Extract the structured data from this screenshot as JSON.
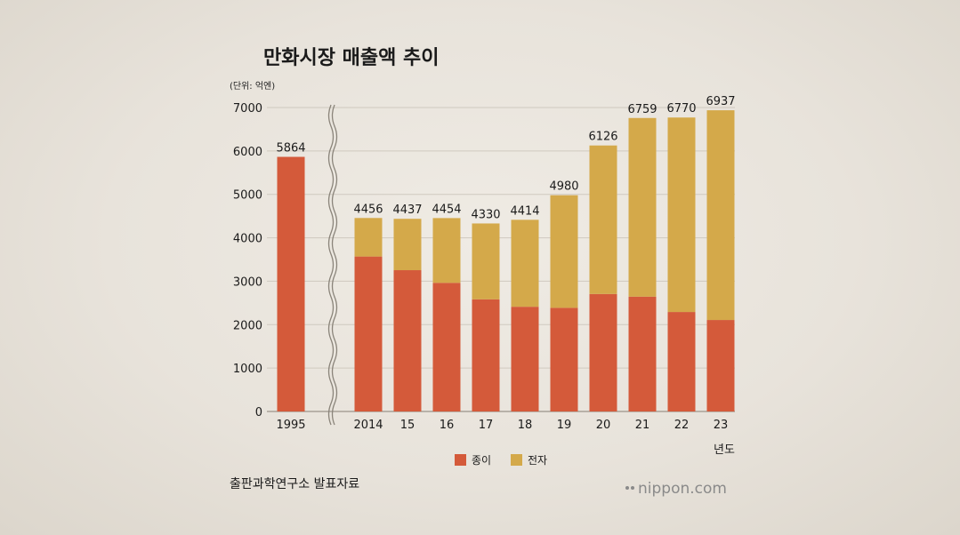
{
  "chart_data": {
    "type": "bar",
    "stacked": true,
    "title": "만화시장 매출액 추이",
    "unit_label": "(단위: 억엔)",
    "xlabel": "년도",
    "categories": [
      "1995",
      "2014",
      "15",
      "16",
      "17",
      "18",
      "19",
      "20",
      "21",
      "22",
      "23"
    ],
    "series": [
      {
        "name": "종이",
        "color": "#d45a3a",
        "values": [
          5864,
          3569,
          3254,
          2963,
          2583,
          2412,
          2387,
          2706,
          2645,
          2291,
          2107
        ]
      },
      {
        "name": "전자",
        "color": "#d4a94a",
        "values": [
          0,
          887,
          1183,
          1491,
          1747,
          2002,
          2593,
          3420,
          4114,
          4479,
          4830
        ]
      }
    ],
    "totals": [
      "5864",
      "4456",
      "4437",
      "4454",
      "4330",
      "4414",
      "4980",
      "6126",
      "6759",
      "6770",
      "6937"
    ],
    "yticks": [
      "0",
      "1000",
      "2000",
      "3000",
      "4000",
      "5000",
      "6000",
      "7000"
    ],
    "ylim": [
      0,
      7000
    ],
    "grid": true,
    "axis_break_after": "1995",
    "legend_position": "bottom-center"
  },
  "source": "출판과학연구소 발표자료",
  "brand": {
    "name": "nippon",
    "suffix": ".com"
  }
}
